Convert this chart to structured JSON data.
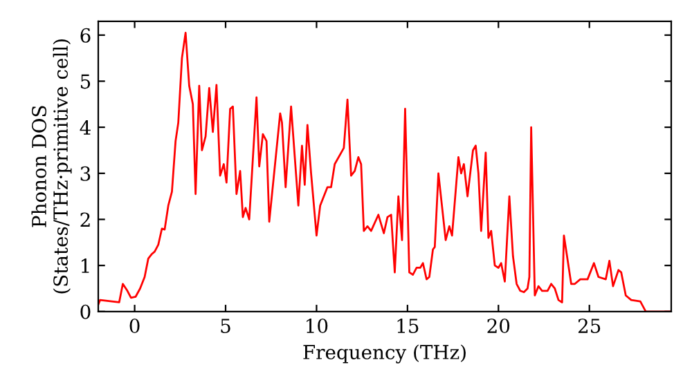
{
  "chart_data": {
    "type": "line",
    "xlabel": "Frequency (THz)",
    "ylabel": "Phonon DOS\n(States/THz·primitive cell)",
    "xlim": [
      -2,
      29.5
    ],
    "ylim": [
      0,
      6.3
    ],
    "xticks": [
      0,
      5,
      10,
      15,
      20,
      25
    ],
    "yticks": [
      0,
      1,
      2,
      3,
      4,
      5,
      6
    ],
    "grid": false,
    "legend": false,
    "marker": "none",
    "line_style": "solid",
    "series": [
      {
        "color": "#ff0000",
        "x": [
          -2.0,
          -1.9,
          -0.85,
          -0.65,
          -0.4,
          -0.2,
          0.05,
          0.3,
          0.55,
          0.75,
          0.95,
          1.1,
          1.3,
          1.5,
          1.65,
          1.85,
          2.05,
          2.25,
          2.4,
          2.6,
          2.8,
          3.0,
          3.2,
          3.35,
          3.55,
          3.7,
          3.9,
          4.1,
          4.3,
          4.5,
          4.7,
          4.9,
          5.05,
          5.25,
          5.4,
          5.6,
          5.8,
          5.95,
          6.1,
          6.3,
          6.7,
          6.85,
          7.05,
          7.25,
          7.4,
          8.0,
          8.1,
          8.3,
          8.6,
          9.0,
          9.2,
          9.35,
          9.5,
          9.7,
          10.0,
          10.2,
          10.6,
          10.8,
          11.0,
          11.5,
          11.7,
          11.9,
          12.1,
          12.3,
          12.45,
          12.6,
          12.8,
          13.0,
          13.4,
          13.7,
          13.9,
          14.1,
          14.3,
          14.5,
          14.7,
          14.87,
          15.1,
          15.3,
          15.5,
          15.7,
          15.85,
          16.05,
          16.2,
          16.4,
          16.5,
          16.7,
          17.1,
          17.3,
          17.45,
          17.8,
          17.95,
          18.1,
          18.3,
          18.6,
          18.75,
          18.9,
          19.05,
          19.3,
          19.45,
          19.6,
          19.8,
          20.0,
          20.15,
          20.35,
          20.6,
          20.8,
          21.0,
          21.2,
          21.4,
          21.6,
          21.7,
          21.8,
          22.0,
          22.2,
          22.4,
          22.7,
          22.9,
          23.1,
          23.3,
          23.5,
          23.6,
          24.0,
          24.2,
          24.5,
          24.9,
          25.25,
          25.5,
          25.9,
          26.1,
          26.3,
          26.6,
          26.75,
          27.0,
          27.3,
          27.8,
          28.1,
          29.45
        ],
        "values": [
          0.15,
          0.25,
          0.2,
          0.6,
          0.45,
          0.3,
          0.32,
          0.5,
          0.75,
          1.15,
          1.25,
          1.3,
          1.45,
          1.8,
          1.78,
          2.3,
          2.6,
          3.7,
          4.1,
          5.5,
          6.05,
          4.9,
          4.5,
          2.55,
          4.9,
          3.5,
          3.8,
          4.85,
          3.9,
          4.92,
          2.95,
          3.2,
          2.8,
          4.4,
          4.45,
          2.55,
          3.05,
          2.05,
          2.25,
          2.0,
          4.65,
          3.15,
          3.85,
          3.7,
          1.95,
          4.3,
          4.1,
          2.7,
          4.45,
          2.3,
          3.6,
          2.75,
          4.05,
          3.0,
          1.65,
          2.3,
          2.7,
          2.7,
          3.2,
          3.55,
          4.6,
          2.95,
          3.05,
          3.35,
          3.2,
          1.75,
          1.85,
          1.75,
          2.1,
          1.7,
          2.05,
          2.1,
          0.85,
          2.5,
          1.55,
          4.4,
          0.85,
          0.8,
          0.95,
          0.95,
          1.05,
          0.7,
          0.75,
          1.35,
          1.4,
          3.0,
          1.55,
          1.85,
          1.65,
          3.35,
          3.0,
          3.2,
          2.5,
          3.5,
          3.6,
          3.0,
          1.75,
          3.45,
          1.6,
          1.75,
          1.0,
          0.95,
          1.05,
          0.65,
          2.5,
          1.2,
          0.6,
          0.45,
          0.42,
          0.5,
          0.75,
          4.0,
          0.35,
          0.55,
          0.45,
          0.45,
          0.6,
          0.5,
          0.25,
          0.2,
          1.65,
          0.6,
          0.6,
          0.7,
          0.7,
          1.05,
          0.75,
          0.7,
          1.1,
          0.55,
          0.9,
          0.85,
          0.35,
          0.25,
          0.22,
          0.0,
          0.0
        ]
      }
    ]
  }
}
